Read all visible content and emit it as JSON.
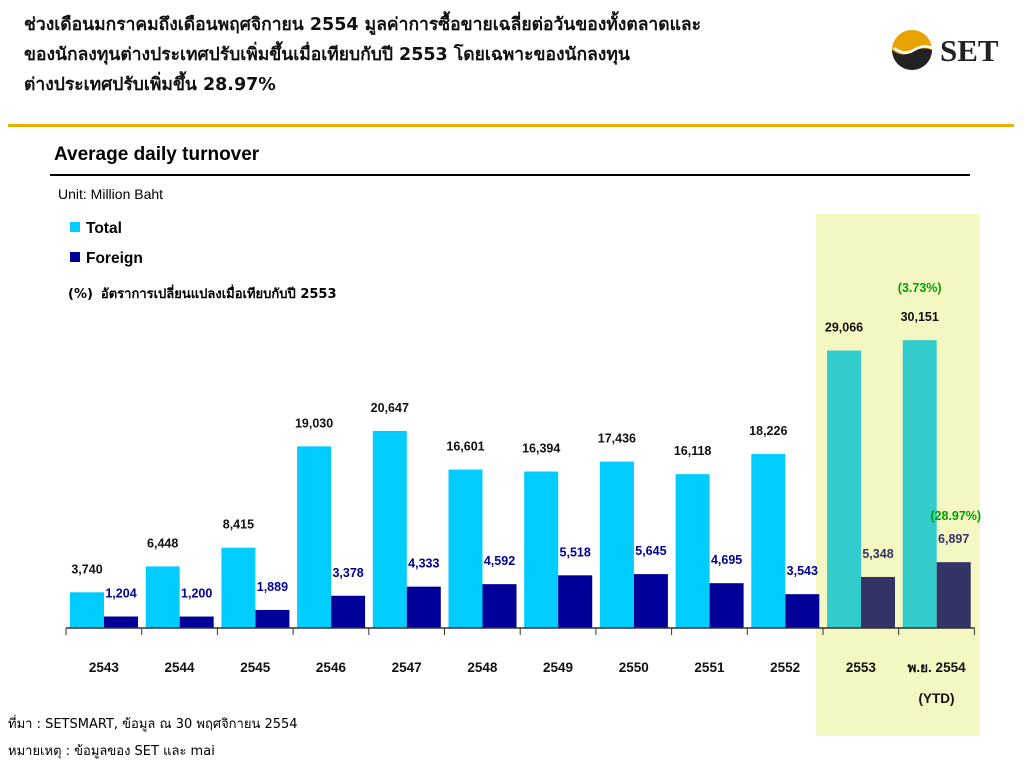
{
  "headline": [
    "ช่วงเดือนมกราคมถึงเดือนพฤศจิกายน 2554 มูลค่าการซื้อขายเฉลี่ยต่อวันของทั้งตลาดและ",
    "ของนักลงทุนต่างประเทศปรับเพิ่มขึ้นเมื่อเทียบกับปี 2553 โดยเฉพาะของนักลงทุน",
    "ต่างประเทศปรับเพิ่มขึ้น 28.97%"
  ],
  "logo_text": "SET",
  "section_title": "Average daily turnover",
  "unit": "Unit: Million Baht",
  "legend": {
    "total": "Total",
    "foreign": "Foreign",
    "pct_marker": "(%)",
    "pct_text": "อัตราการเปลี่ยนแปลงเมื่อเทียบกับปี 2553"
  },
  "colors": {
    "total": "#00ccff",
    "foreign": "#000099",
    "total_highlight": "#33cccc",
    "foreign_highlight": "#333366",
    "highlight_bg": "#f5f7c2",
    "pct_green": "#00a000",
    "accent_gold": "#e8b100"
  },
  "chart_data": {
    "type": "bar",
    "categories": [
      "2543",
      "2544",
      "2545",
      "2546",
      "2547",
      "2548",
      "2549",
      "2550",
      "2551",
      "2552",
      "2553",
      "พ.ย. 2554"
    ],
    "category_sublabels": [
      "",
      "",
      "",
      "",
      "",
      "",
      "",
      "",
      "",
      "",
      "",
      "(YTD)"
    ],
    "series": [
      {
        "name": "Total",
        "values": [
          3740,
          6448,
          8415,
          19030,
          20647,
          16601,
          16394,
          17436,
          16118,
          18226,
          29066,
          30151
        ]
      },
      {
        "name": "Foreign",
        "values": [
          1204,
          1200,
          1889,
          3378,
          4333,
          4592,
          5518,
          5645,
          4695,
          3543,
          5348,
          6897
        ]
      }
    ],
    "value_labels": {
      "Total": [
        "3,740",
        "6,448",
        "8,415",
        "19,030",
        "20,647",
        "16,601",
        "16,394",
        "17,436",
        "16,118",
        "18,226",
        "29,066",
        "30,151"
      ],
      "Foreign": [
        "1,204",
        "1,200",
        "1,889",
        "3,378",
        "4,333",
        "4,592",
        "5,518",
        "5,645",
        "4,695",
        "3,543",
        "5,348",
        "6,897"
      ]
    },
    "highlighted_categories": [
      "2553",
      "พ.ย. 2554"
    ],
    "pct_change": {
      "Total": "(3.73%)",
      "Foreign": "(28.97%)"
    },
    "ylim": [
      0,
      34000
    ],
    "grid": false
  },
  "footer": {
    "source": "ที่มา : SETSMART, ข้อมูล ณ 30 พฤศจิกายน 2554",
    "note": "หมายเหตุ : ข้อมูลของ SET และ mai"
  }
}
